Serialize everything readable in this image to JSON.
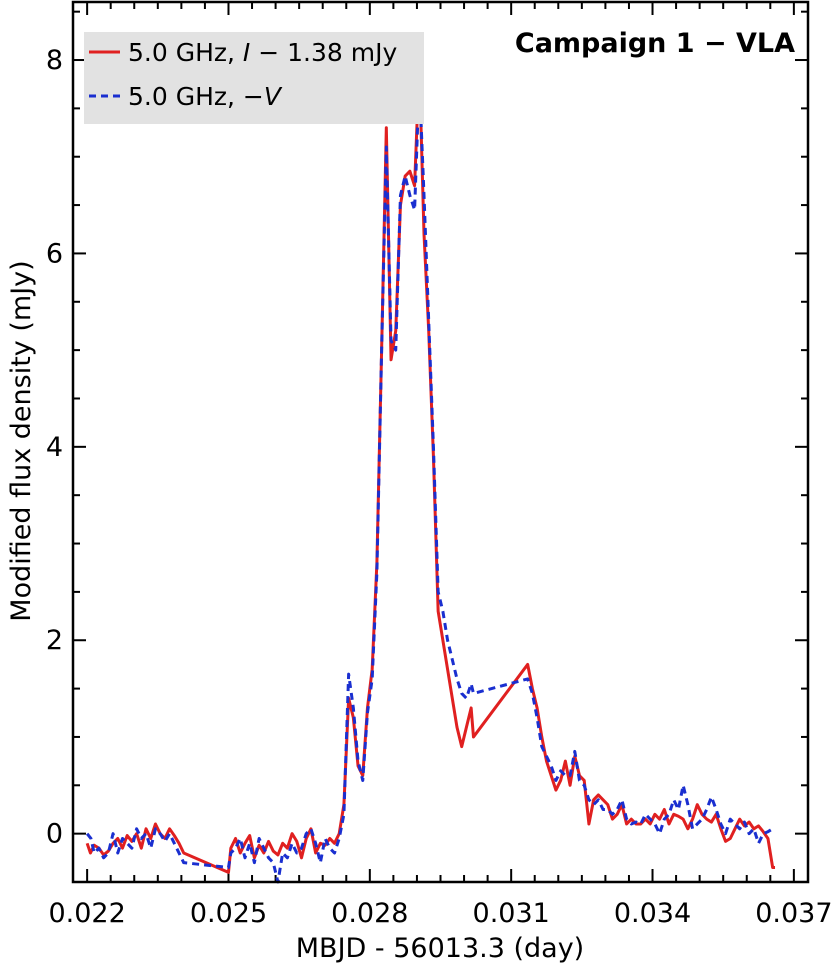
{
  "chart_data": {
    "type": "line",
    "title": "Campaign 1 − VLA",
    "xlabel": "MBJD - 56013.3 (day)",
    "ylabel": "Modified flux density (mJy)",
    "xlim": [
      0.0217,
      0.0373
    ],
    "ylim": [
      -0.5,
      8.6
    ],
    "xticks": [
      0.022,
      0.025,
      0.028,
      0.031,
      0.034,
      0.037
    ],
    "xtick_labels": [
      "0.022",
      "0.025",
      "0.028",
      "0.031",
      "0.034",
      "0.037"
    ],
    "yticks": [
      0,
      2,
      4,
      6,
      8
    ],
    "ytick_labels": [
      "0",
      "2",
      "4",
      "6",
      "8"
    ],
    "legend": {
      "position": "top-left",
      "entries": [
        {
          "prefix": "5.0 GHz, ",
          "italic": "I",
          "suffix": " − 1.38 mJy"
        },
        {
          "prefix": "5.0 GHz, −",
          "italic": "V",
          "suffix": ""
        }
      ]
    },
    "series": [
      {
        "name": "5.0 GHz, I − 1.38 mJy",
        "color": "#e02020",
        "dash": "solid",
        "x": [
          0.022,
          0.02207,
          0.02215,
          0.02225,
          0.02235,
          0.02245,
          0.02255,
          0.02265,
          0.02275,
          0.02285,
          0.02295,
          0.02305,
          0.02315,
          0.02325,
          0.02335,
          0.02345,
          0.02355,
          0.02365,
          0.02375,
          0.02385,
          0.02395,
          0.02405,
          0.025,
          0.02505,
          0.02515,
          0.02525,
          0.02535,
          0.02545,
          0.02555,
          0.02565,
          0.02575,
          0.02585,
          0.02595,
          0.02605,
          0.02615,
          0.02625,
          0.02635,
          0.02645,
          0.02655,
          0.02665,
          0.02675,
          0.02685,
          0.02695,
          0.02705,
          0.02715,
          0.02725,
          0.02735,
          0.02745,
          0.02755,
          0.02765,
          0.02775,
          0.02785,
          0.02795,
          0.02805,
          0.02815,
          0.02825,
          0.02835,
          0.02845,
          0.02855,
          0.02865,
          0.02875,
          0.02885,
          0.02895,
          0.02905,
          0.02915,
          0.02925,
          0.02935,
          0.02945,
          0.02955,
          0.02965,
          0.02975,
          0.02985,
          0.02995,
          0.03005,
          0.03015,
          0.0302,
          0.03135,
          0.03145,
          0.03155,
          0.03165,
          0.03175,
          0.03185,
          0.03195,
          0.03205,
          0.03215,
          0.03225,
          0.03235,
          0.03245,
          0.03255,
          0.03265,
          0.03275,
          0.03285,
          0.03295,
          0.03305,
          0.03315,
          0.03325,
          0.03335,
          0.03345,
          0.03355,
          0.03365,
          0.03375,
          0.03385,
          0.03395,
          0.03405,
          0.03415,
          0.03425,
          0.03435,
          0.03445,
          0.03455,
          0.03465,
          0.03475,
          0.03485,
          0.03495,
          0.03505,
          0.03515,
          0.03525,
          0.03535,
          0.03545,
          0.03555,
          0.03565,
          0.03575,
          0.03585,
          0.03595,
          0.03605,
          0.03615,
          0.03625,
          0.03635,
          0.03645,
          0.03655,
          0.0366
        ],
        "y": [
          -0.1,
          -0.2,
          -0.12,
          -0.15,
          -0.22,
          -0.18,
          -0.1,
          -0.05,
          -0.15,
          -0.02,
          -0.08,
          0.0,
          -0.15,
          0.05,
          -0.05,
          0.1,
          0.0,
          -0.05,
          0.05,
          -0.02,
          -0.1,
          -0.2,
          -0.4,
          -0.15,
          -0.05,
          -0.2,
          -0.1,
          -0.02,
          -0.25,
          -0.12,
          -0.2,
          -0.08,
          -0.18,
          -0.22,
          -0.1,
          -0.15,
          0.0,
          -0.08,
          -0.25,
          -0.05,
          0.05,
          -0.2,
          -0.1,
          -0.12,
          -0.05,
          -0.1,
          0.0,
          0.3,
          1.4,
          1.2,
          0.7,
          0.6,
          1.3,
          1.7,
          2.8,
          5.0,
          7.3,
          4.9,
          5.2,
          6.5,
          6.8,
          6.85,
          6.7,
          7.95,
          6.2,
          5.2,
          3.9,
          2.3,
          2.0,
          1.7,
          1.4,
          1.1,
          0.9,
          1.1,
          1.3,
          1.0,
          1.75,
          1.5,
          1.3,
          1.0,
          0.75,
          0.6,
          0.45,
          0.55,
          0.75,
          0.5,
          0.8,
          0.6,
          0.55,
          0.1,
          0.35,
          0.4,
          0.35,
          0.3,
          0.15,
          0.2,
          0.3,
          0.1,
          0.15,
          0.1,
          0.1,
          0.15,
          0.1,
          0.2,
          0.15,
          0.25,
          0.1,
          0.2,
          0.18,
          0.15,
          0.05,
          0.15,
          0.3,
          0.2,
          0.15,
          0.12,
          0.2,
          0.05,
          -0.08,
          -0.05,
          0.05,
          0.15,
          0.08,
          0.12,
          0.05,
          0.08,
          0.02,
          -0.05,
          -0.35,
          -0.35
        ],
        "x_note": "approximate"
      },
      {
        "name": "5.0 GHz, −V",
        "color": "#1a2fd0",
        "dash": "dashed",
        "x": [
          0.022,
          0.02208,
          0.02215,
          0.02225,
          0.02235,
          0.02245,
          0.02255,
          0.02265,
          0.02275,
          0.02285,
          0.02295,
          0.02305,
          0.02315,
          0.02325,
          0.02335,
          0.02345,
          0.02355,
          0.02365,
          0.02375,
          0.02385,
          0.02395,
          0.02405,
          0.025,
          0.02505,
          0.02515,
          0.02525,
          0.02535,
          0.02545,
          0.02555,
          0.02565,
          0.02575,
          0.02585,
          0.02595,
          0.02605,
          0.02615,
          0.02625,
          0.02635,
          0.02645,
          0.02655,
          0.02665,
          0.02675,
          0.02685,
          0.02695,
          0.02705,
          0.02715,
          0.02725,
          0.02735,
          0.02745,
          0.02755,
          0.02765,
          0.02775,
          0.02785,
          0.02795,
          0.02805,
          0.02815,
          0.02825,
          0.02835,
          0.02845,
          0.02855,
          0.02865,
          0.02875,
          0.02885,
          0.02895,
          0.02905,
          0.02915,
          0.02925,
          0.02935,
          0.02945,
          0.02955,
          0.02965,
          0.02975,
          0.02985,
          0.02995,
          0.03005,
          0.03015,
          0.0302,
          0.03135,
          0.03145,
          0.03155,
          0.03165,
          0.03175,
          0.03185,
          0.03195,
          0.03205,
          0.03215,
          0.03225,
          0.03235,
          0.03245,
          0.03255,
          0.03265,
          0.03275,
          0.03285,
          0.03295,
          0.03305,
          0.03315,
          0.03325,
          0.03335,
          0.03345,
          0.03355,
          0.03365,
          0.03375,
          0.03385,
          0.03395,
          0.03405,
          0.03415,
          0.03425,
          0.03435,
          0.03445,
          0.03455,
          0.03465,
          0.03475,
          0.03485,
          0.03495,
          0.03505,
          0.03515,
          0.03525,
          0.03535,
          0.03545,
          0.03555,
          0.03565,
          0.03575,
          0.03585,
          0.03595,
          0.03605,
          0.03615,
          0.03625,
          0.03635,
          0.03645,
          0.03655,
          0.0366
        ],
        "y": [
          0.0,
          -0.05,
          -0.2,
          -0.15,
          -0.25,
          -0.2,
          0.0,
          -0.2,
          -0.05,
          -0.1,
          -0.15,
          0.05,
          -0.05,
          0.0,
          -0.15,
          0.05,
          0.0,
          -0.08,
          0.0,
          -0.1,
          -0.2,
          -0.3,
          -0.35,
          -0.2,
          -0.15,
          -0.05,
          -0.25,
          -0.1,
          -0.3,
          -0.05,
          -0.15,
          -0.25,
          -0.3,
          -0.5,
          -0.2,
          -0.25,
          -0.1,
          -0.2,
          -0.15,
          0.0,
          0.05,
          -0.1,
          -0.3,
          -0.05,
          -0.15,
          -0.2,
          -0.05,
          0.2,
          1.65,
          1.3,
          0.75,
          0.55,
          1.25,
          1.6,
          2.7,
          5.0,
          7.1,
          5.1,
          5.0,
          6.6,
          6.8,
          6.6,
          6.45,
          7.8,
          6.6,
          5.3,
          4.0,
          2.5,
          2.3,
          2.0,
          1.8,
          1.6,
          1.45,
          1.4,
          1.55,
          1.45,
          1.6,
          1.45,
          1.2,
          0.9,
          0.8,
          0.7,
          0.55,
          0.65,
          0.6,
          0.6,
          0.85,
          0.55,
          0.5,
          0.35,
          0.3,
          0.35,
          0.25,
          0.25,
          0.2,
          0.25,
          0.35,
          0.15,
          0.1,
          0.12,
          0.1,
          0.2,
          0.15,
          0.1,
          0.0,
          0.15,
          0.2,
          0.35,
          0.25,
          0.5,
          0.3,
          0.05,
          0.1,
          0.15,
          0.25,
          0.38,
          0.25,
          0.1,
          0.0,
          0.15,
          0.1,
          0.05,
          0.12,
          0.0,
          0.05,
          -0.1,
          0.0,
          0.02,
          0.05,
          0.05
        ],
        "x_note": "approximate"
      }
    ]
  }
}
